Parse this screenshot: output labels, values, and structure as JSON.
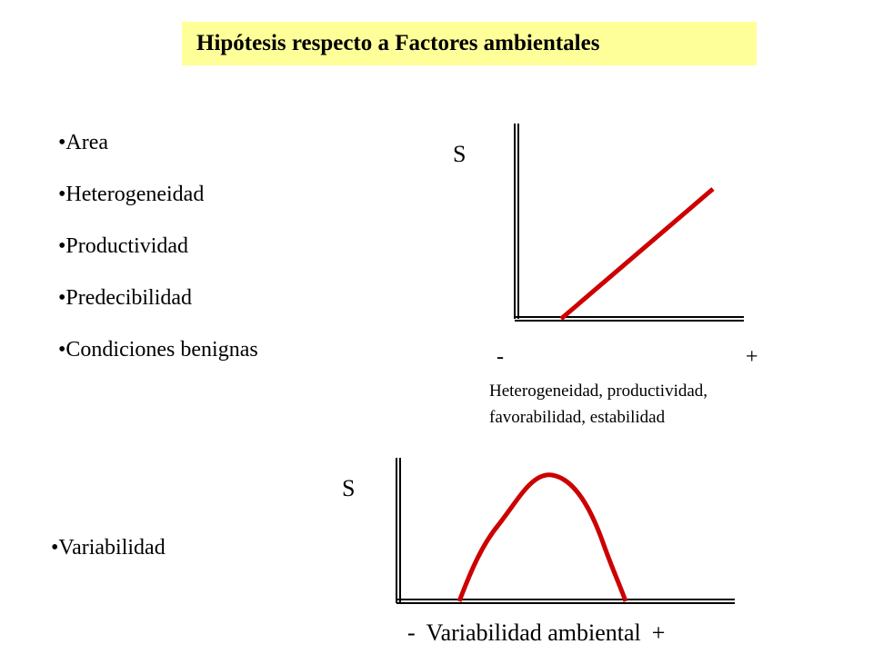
{
  "slide": {
    "title": "Hipótesis respecto a Factores ambientales",
    "bullets": [
      "Area",
      "Heterogeneidad",
      "Productividad",
      "Predecibilidad",
      "Condiciones benignas"
    ],
    "bottom_bullet": "Variabilidad"
  },
  "colors": {
    "title_bg": "#ffff99",
    "curve": "#cc0000",
    "axis": "#000000"
  },
  "graph_top": {
    "ylabel": "S",
    "x_minus": "-",
    "x_plus": "+",
    "xlabel_line1": "Heterogeneidad, productividad,",
    "xlabel_line2": "favorabilidad, estabilidad",
    "curve_shape": "increasing linear"
  },
  "graph_bottom": {
    "ylabel": "S",
    "x_minus": "-",
    "xlabel": "Variabilidad ambiental",
    "x_plus": "+",
    "curve_shape": "hump-shaped (unimodal)"
  }
}
